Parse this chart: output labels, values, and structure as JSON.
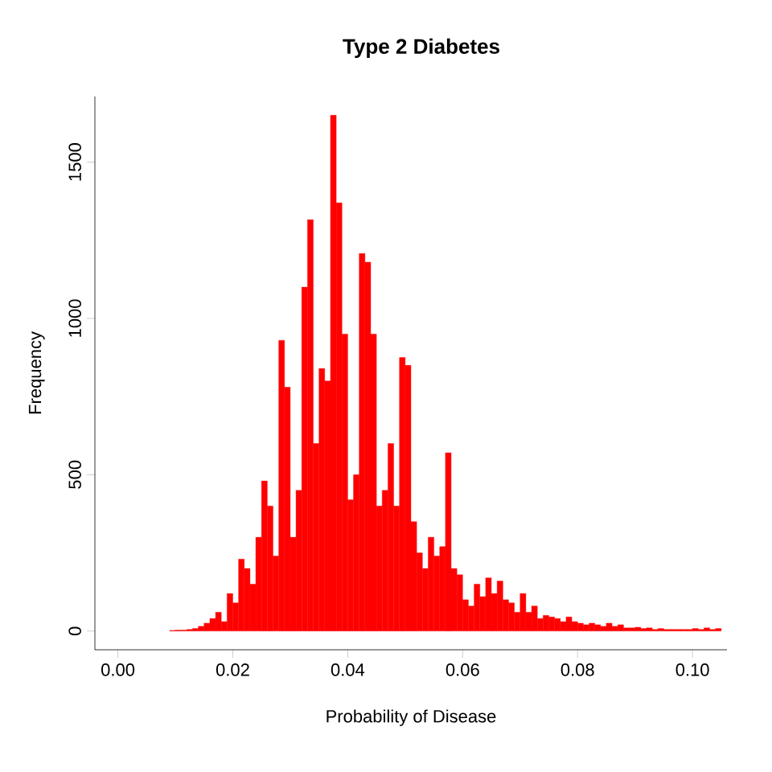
{
  "chart_data": {
    "type": "histogram",
    "title": "Type 2 Diabetes",
    "xlabel": "Probability of Disease",
    "ylabel": "Frequency",
    "color": "#ff0000",
    "bins": [
      0.009,
      0.01,
      0.011,
      0.012,
      0.013,
      0.014,
      0.015,
      0.016,
      0.017,
      0.018,
      0.019,
      0.02,
      0.021,
      0.022,
      0.023,
      0.024,
      0.025,
      0.026,
      0.027,
      0.028,
      0.029,
      0.03,
      0.031,
      0.032,
      0.033,
      0.034,
      0.035,
      0.036,
      0.037,
      0.038,
      0.039,
      0.04,
      0.041,
      0.042,
      0.043,
      0.044,
      0.045,
      0.046,
      0.047,
      0.048,
      0.049,
      0.05,
      0.051,
      0.052,
      0.053,
      0.054,
      0.055,
      0.056,
      0.057,
      0.058,
      0.059,
      0.06,
      0.061,
      0.062,
      0.063,
      0.064,
      0.065,
      0.066,
      0.067,
      0.068,
      0.069,
      0.07,
      0.071,
      0.072,
      0.073,
      0.074,
      0.075,
      0.076,
      0.077,
      0.078,
      0.079,
      0.08,
      0.081,
      0.082,
      0.083,
      0.084,
      0.085,
      0.086,
      0.087,
      0.088,
      0.089,
      0.09,
      0.091,
      0.092,
      0.093,
      0.094,
      0.095,
      0.096,
      0.097,
      0.098,
      0.099,
      0.1,
      0.101,
      0.102,
      0.103,
      0.104,
      0.105
    ],
    "values": [
      2,
      3,
      3,
      5,
      8,
      15,
      25,
      40,
      60,
      30,
      120,
      90,
      230,
      200,
      150,
      300,
      480,
      400,
      240,
      930,
      780,
      300,
      450,
      1100,
      1316,
      600,
      840,
      800,
      1650,
      1370,
      950,
      420,
      500,
      1208,
      1180,
      950,
      400,
      450,
      600,
      400,
      875,
      850,
      350,
      250,
      200,
      300,
      240,
      270,
      570,
      200,
      180,
      100,
      80,
      150,
      110,
      170,
      120,
      160,
      100,
      90,
      60,
      120,
      60,
      80,
      40,
      50,
      45,
      40,
      30,
      45,
      30,
      25,
      20,
      25,
      20,
      15,
      25,
      15,
      20,
      10,
      10,
      12,
      8,
      10,
      5,
      8,
      5,
      5,
      5,
      5,
      5,
      8,
      5,
      10,
      5,
      8
    ],
    "xlim": [
      -0.004,
      0.106
    ],
    "ylim": [
      -60,
      1710
    ],
    "xticks": [
      {
        "value": 0,
        "label": "0.00"
      },
      {
        "value": 0.02,
        "label": "0.02"
      },
      {
        "value": 0.04,
        "label": "0.04"
      },
      {
        "value": 0.06,
        "label": "0.06"
      },
      {
        "value": 0.08,
        "label": "0.08"
      },
      {
        "value": 0.1,
        "label": "0.10"
      }
    ],
    "yticks": [
      0,
      500,
      1000,
      1500
    ],
    "grid": false
  }
}
